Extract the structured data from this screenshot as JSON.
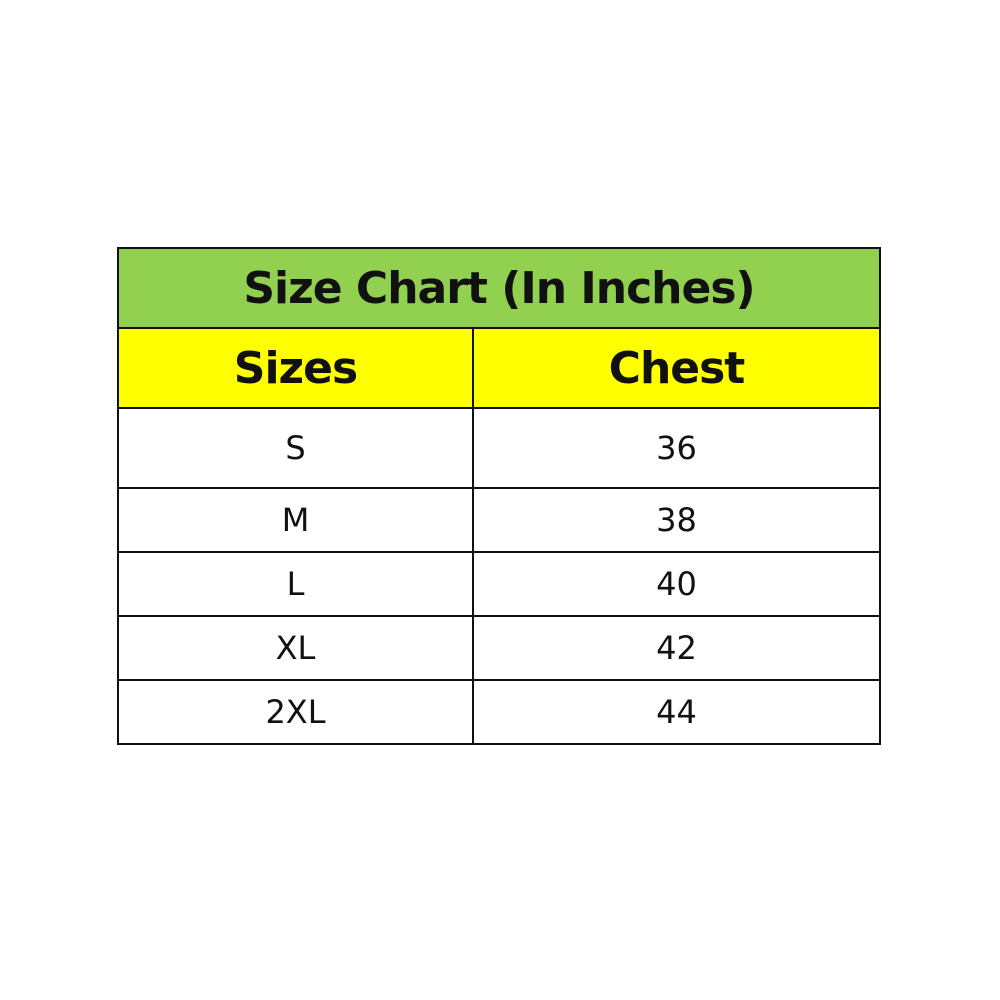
{
  "title": "Size Chart (In Inches)",
  "headers": [
    "Sizes",
    "Chest"
  ],
  "rows": [
    {
      "size": "S",
      "chest": "36"
    },
    {
      "size": "M",
      "chest": "38"
    },
    {
      "size": "L",
      "chest": "40"
    },
    {
      "size": "XL",
      "chest": "42"
    },
    {
      "size": "2XL",
      "chest": "44"
    }
  ],
  "colors": {
    "title_bg": "#92D050",
    "header_bg": "#FFFF00"
  }
}
